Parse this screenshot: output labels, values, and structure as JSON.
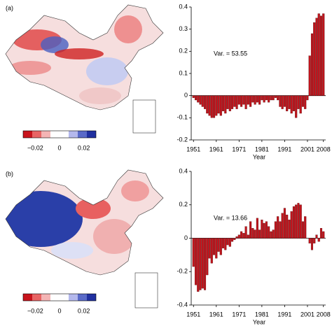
{
  "chart_data": [
    {
      "type": "bar",
      "annotation": "Var. = 53.55",
      "xlabel": "Year",
      "color": "#c0141c",
      "x": [
        1951,
        1952,
        1953,
        1954,
        1955,
        1956,
        1957,
        1958,
        1959,
        1960,
        1961,
        1962,
        1963,
        1964,
        1965,
        1966,
        1967,
        1968,
        1969,
        1970,
        1971,
        1972,
        1973,
        1974,
        1975,
        1976,
        1977,
        1978,
        1979,
        1980,
        1981,
        1982,
        1983,
        1984,
        1985,
        1986,
        1987,
        1988,
        1989,
        1990,
        1991,
        1992,
        1993,
        1994,
        1995,
        1996,
        1997,
        1998,
        1999,
        2000,
        2001,
        2002,
        2003,
        2004,
        2005,
        2006,
        2007,
        2008
      ],
      "values": [
        -0.01,
        -0.02,
        -0.03,
        -0.04,
        -0.05,
        -0.06,
        -0.08,
        -0.09,
        -0.1,
        -0.1,
        -0.09,
        -0.08,
        -0.09,
        -0.07,
        -0.08,
        -0.06,
        -0.07,
        -0.06,
        -0.05,
        -0.06,
        -0.04,
        -0.05,
        -0.04,
        -0.06,
        -0.04,
        -0.05,
        -0.03,
        -0.04,
        -0.03,
        -0.04,
        -0.02,
        -0.03,
        -0.02,
        -0.03,
        -0.02,
        -0.02,
        -0.01,
        -0.02,
        -0.05,
        -0.06,
        -0.05,
        -0.07,
        -0.06,
        -0.08,
        -0.07,
        -0.1,
        -0.06,
        -0.08,
        -0.05,
        -0.06,
        -0.02,
        0.18,
        0.28,
        0.33,
        0.35,
        0.37,
        0.36,
        0.37
      ],
      "xlim": [
        1950,
        2009
      ],
      "xticks": [
        1951,
        1961,
        1971,
        1981,
        1991,
        2001,
        2008
      ],
      "ylim": [
        -0.2,
        0.4
      ],
      "yticks": [
        -0.2,
        -0.1,
        0,
        0.1,
        0.2,
        0.3,
        0.4
      ]
    },
    {
      "type": "bar",
      "annotation": "Var. = 13.66",
      "xlabel": "Year",
      "color": "#c0141c",
      "x": [
        1951,
        1952,
        1953,
        1954,
        1955,
        1956,
        1957,
        1958,
        1959,
        1960,
        1961,
        1962,
        1963,
        1964,
        1965,
        1966,
        1967,
        1968,
        1969,
        1970,
        1971,
        1972,
        1973,
        1974,
        1975,
        1976,
        1977,
        1978,
        1979,
        1980,
        1981,
        1982,
        1983,
        1984,
        1985,
        1986,
        1987,
        1988,
        1989,
        1990,
        1991,
        1992,
        1993,
        1994,
        1995,
        1996,
        1997,
        1998,
        1999,
        2000,
        2001,
        2002,
        2003,
        2004,
        2005,
        2006,
        2007,
        2008
      ],
      "values": [
        -0.17,
        -0.28,
        -0.32,
        -0.31,
        -0.3,
        -0.31,
        -0.22,
        -0.12,
        -0.15,
        -0.1,
        -0.12,
        -0.08,
        -0.1,
        -0.06,
        -0.07,
        -0.04,
        -0.05,
        -0.02,
        -0.01,
        0.01,
        0.02,
        0.04,
        0.03,
        0.07,
        0.02,
        0.1,
        0.06,
        0.05,
        0.12,
        0.05,
        0.11,
        0.09,
        0.1,
        0.07,
        0.04,
        0.05,
        0.1,
        0.13,
        0.1,
        0.15,
        0.18,
        0.14,
        0.11,
        0.16,
        0.19,
        0.2,
        0.21,
        0.2,
        0.1,
        0.13,
        0.0,
        -0.03,
        -0.07,
        -0.03,
        0.02,
        -0.02,
        0.06,
        0.04
      ],
      "xlim": [
        1950,
        2009
      ],
      "xticks": [
        1951,
        1961,
        1971,
        1981,
        1991,
        2001,
        2008
      ],
      "ylim": [
        -0.4,
        0.4
      ],
      "yticks": [
        -0.4,
        -0.2,
        0,
        0.2,
        0.4
      ]
    }
  ],
  "panel_labels": [
    "(a)",
    "(b)"
  ],
  "colorbar": {
    "ticks": [
      {
        "value": -0.02,
        "label": "−0.02"
      },
      0,
      0.02
    ]
  }
}
